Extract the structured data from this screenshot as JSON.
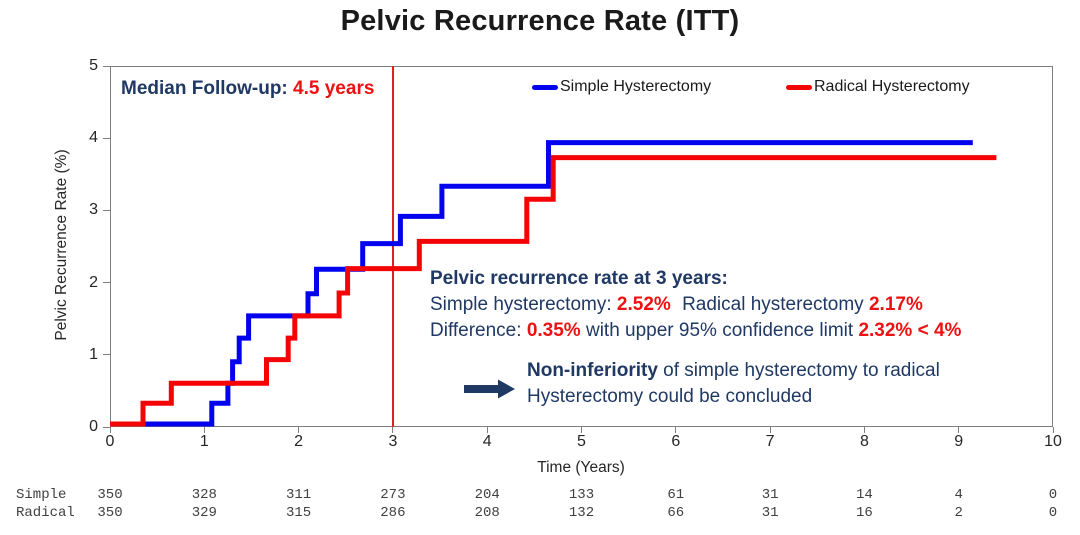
{
  "title": "Pelvic Recurrence Rate (ITT)",
  "colors": {
    "navy_text": "#1f3864",
    "accent_red": "#ee1111",
    "simple_blue": "#0202ef",
    "radical_red": "#f40404",
    "reference_line_red": "#e02020"
  },
  "median_followup": {
    "label": "Median Follow-up:",
    "value": "4.5 years"
  },
  "legend": [
    {
      "label": "Simple Hysterectomy",
      "color": "#0202ef"
    },
    {
      "label": "Radical Hysterectomy",
      "color": "#f40404"
    }
  ],
  "chart_data": {
    "type": "line",
    "subtype": "kaplan-meier-step",
    "title": "Pelvic Recurrence Rate (ITT)",
    "xlabel": "Time (Years)",
    "ylabel": "Pelvic Recurrence Rate (%)",
    "xlim": [
      0,
      10
    ],
    "ylim": [
      0,
      5
    ],
    "x_ticks": [
      0,
      1,
      2,
      3,
      4,
      5,
      6,
      7,
      8,
      9,
      10
    ],
    "y_ticks": [
      0,
      1,
      2,
      3,
      4,
      5
    ],
    "grid": false,
    "legend_position": "top-inside",
    "reference_line_x": 3,
    "series": [
      {
        "name": "Simple Hysterectomy",
        "color": "#0202ef",
        "value_at_3_years_pct": 2.52,
        "step_points": [
          [
            0,
            0
          ],
          [
            1.08,
            0.29
          ],
          [
            1.25,
            0.57
          ],
          [
            1.3,
            0.87
          ],
          [
            1.37,
            1.2
          ],
          [
            1.47,
            1.51
          ],
          [
            2.1,
            1.82
          ],
          [
            2.19,
            2.16
          ],
          [
            2.68,
            2.52
          ],
          [
            3.08,
            2.9
          ],
          [
            3.52,
            3.32
          ],
          [
            4.65,
            3.93
          ],
          [
            9.15,
            3.93
          ]
        ]
      },
      {
        "name": "Radical Hysterectomy",
        "color": "#f40404",
        "value_at_3_years_pct": 2.17,
        "step_points": [
          [
            0,
            0
          ],
          [
            0.35,
            0.29
          ],
          [
            0.65,
            0.57
          ],
          [
            1.66,
            0.9
          ],
          [
            1.89,
            1.2
          ],
          [
            1.96,
            1.51
          ],
          [
            2.43,
            1.83
          ],
          [
            2.52,
            2.17
          ],
          [
            3.28,
            2.55
          ],
          [
            4.42,
            3.14
          ],
          [
            4.7,
            3.72
          ],
          [
            9.4,
            3.72
          ]
        ]
      }
    ]
  },
  "stats_block": {
    "heading": "Pelvic recurrence rate at 3 years:",
    "simple_label": "Simple hysterectomy:",
    "simple_value": "2.52%",
    "radical_label": "Radical hysterectomy",
    "radical_value": "2.17%",
    "difference_label": "Difference:",
    "difference_value": "0.35%",
    "difference_mid": "with upper 95% confidence limit",
    "difference_limit": "2.32% < 4%"
  },
  "noninferiority": {
    "bold_lead": "Non-inferiority",
    "line1_rest": "of simple hysterectomy to radical",
    "line2": "Hysterectomy could be concluded"
  },
  "risk_table": {
    "rows": [
      {
        "label": "Simple",
        "values": [
          350,
          328,
          311,
          273,
          204,
          133,
          61,
          31,
          14,
          4,
          0
        ]
      },
      {
        "label": "Radical",
        "values": [
          350,
          329,
          315,
          286,
          208,
          132,
          66,
          31,
          16,
          2,
          0
        ]
      }
    ]
  }
}
